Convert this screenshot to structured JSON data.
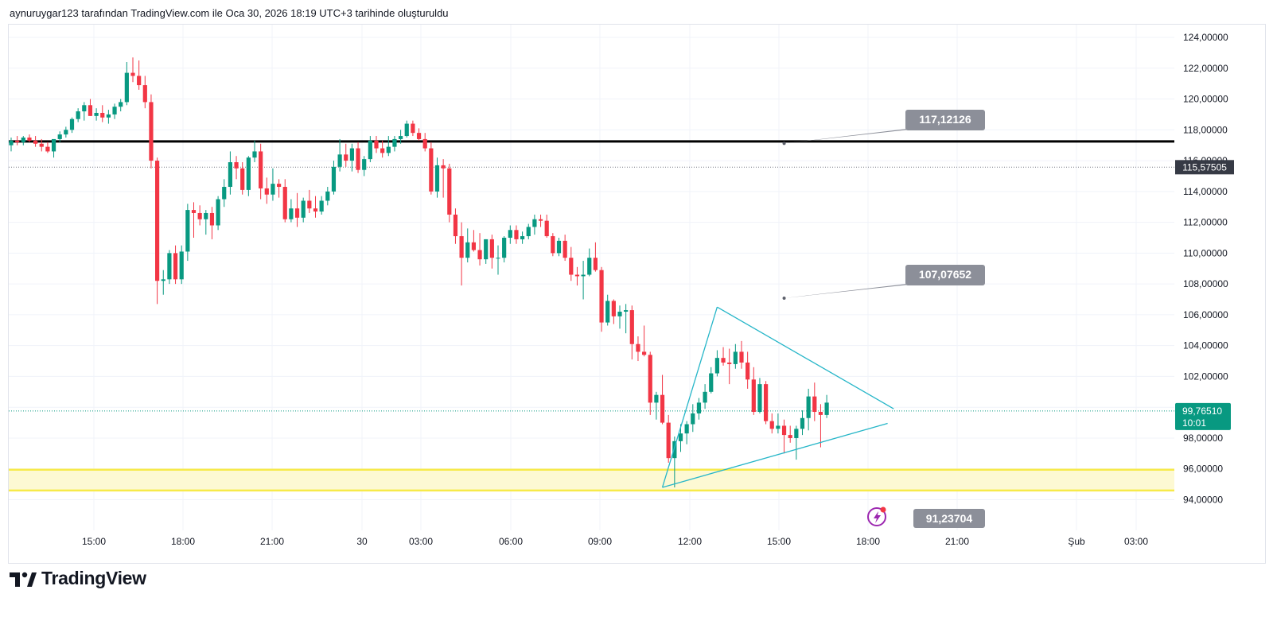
{
  "header": {
    "caption": "aynuruygar123 tarafından TradingView.com ile Oca 30, 2026 18:19 UTC+3 tarihinde oluşturuldu"
  },
  "brand": {
    "name": "TradingView"
  },
  "colors": {
    "up": "#089981",
    "down": "#f23645",
    "black_line": "#000000",
    "triangle": "#26b6c8",
    "zone": "#f7ea4a",
    "zone_fill": "#fdf9d3",
    "price_tag": "#089981",
    "callout": "#8c8f99"
  },
  "chart_data": {
    "type": "candlestick",
    "y_axis": {
      "min": 93,
      "max": 125,
      "ticks": [
        "124,00000",
        "122,00000",
        "120,00000",
        "118,00000",
        "116,00000",
        "114,00000",
        "112,00000",
        "110,00000",
        "108,00000",
        "106,00000",
        "104,00000",
        "102,00000",
        "100,00000",
        "98,00000",
        "96,00000",
        "94,00000"
      ]
    },
    "x_axis": {
      "ticks": [
        "15:00",
        "18:00",
        "21:00",
        "30",
        "03:00",
        "06:00",
        "09:00",
        "12:00",
        "15:00",
        "18:00",
        "21:00",
        "Şub",
        "03:00"
      ]
    },
    "candles": [
      [
        117.0,
        117.5,
        116.6,
        117.3
      ],
      [
        117.3,
        117.6,
        117.0,
        117.2
      ],
      [
        117.2,
        117.6,
        117.0,
        117.5
      ],
      [
        117.5,
        117.7,
        117.2,
        117.3
      ],
      [
        117.3,
        117.6,
        116.9,
        117.1
      ],
      [
        117.1,
        117.4,
        116.6,
        116.9
      ],
      [
        116.9,
        117.2,
        116.5,
        116.6
      ],
      [
        116.6,
        117.3,
        116.2,
        117.4
      ],
      [
        117.4,
        117.9,
        117.2,
        117.7
      ],
      [
        117.7,
        118.2,
        117.5,
        118.0
      ],
      [
        118.0,
        118.8,
        117.8,
        118.7
      ],
      [
        118.7,
        119.4,
        118.5,
        119.2
      ],
      [
        119.2,
        119.8,
        118.6,
        119.6
      ],
      [
        119.6,
        120.0,
        118.9,
        118.9
      ],
      [
        118.9,
        119.4,
        118.6,
        119.1
      ],
      [
        119.1,
        119.6,
        118.5,
        118.8
      ],
      [
        118.8,
        119.3,
        118.4,
        119.0
      ],
      [
        119.0,
        119.7,
        118.7,
        119.5
      ],
      [
        119.5,
        120.0,
        119.2,
        119.8
      ],
      [
        119.8,
        122.4,
        119.6,
        121.7
      ],
      [
        121.7,
        122.7,
        121.1,
        121.5
      ],
      [
        121.5,
        122.5,
        120.6,
        120.9
      ],
      [
        120.9,
        121.5,
        119.4,
        119.8
      ],
      [
        119.8,
        120.3,
        115.5,
        116.0
      ],
      [
        116.0,
        116.2,
        106.7,
        108.2
      ],
      [
        108.2,
        108.9,
        107.3,
        108.3
      ],
      [
        108.3,
        110.2,
        108.0,
        110.0
      ],
      [
        110.0,
        110.5,
        108.0,
        108.3
      ],
      [
        108.3,
        110.5,
        108.0,
        110.1
      ],
      [
        110.1,
        113.2,
        109.5,
        112.8
      ],
      [
        112.8,
        113.3,
        111.0,
        112.6
      ],
      [
        112.6,
        113.1,
        111.8,
        112.2
      ],
      [
        112.2,
        112.8,
        111.2,
        112.6
      ],
      [
        112.6,
        113.0,
        110.9,
        111.8
      ],
      [
        111.8,
        113.7,
        111.5,
        113.5
      ],
      [
        113.5,
        114.8,
        113.0,
        114.3
      ],
      [
        114.3,
        116.6,
        113.8,
        115.9
      ],
      [
        115.9,
        116.3,
        114.8,
        115.5
      ],
      [
        115.5,
        115.9,
        113.8,
        114.1
      ],
      [
        114.1,
        116.3,
        113.7,
        116.2
      ],
      [
        116.2,
        117.3,
        115.9,
        116.6
      ],
      [
        116.6,
        117.1,
        113.5,
        114.2
      ],
      [
        114.2,
        114.9,
        113.2,
        113.8
      ],
      [
        113.8,
        115.5,
        113.4,
        114.5
      ],
      [
        114.5,
        114.8,
        113.6,
        114.3
      ],
      [
        114.3,
        114.8,
        112.0,
        112.2
      ],
      [
        112.2,
        113.5,
        112.0,
        112.9
      ],
      [
        112.9,
        113.9,
        111.7,
        112.3
      ],
      [
        112.3,
        113.6,
        112.0,
        113.4
      ],
      [
        113.4,
        114.1,
        112.6,
        112.9
      ],
      [
        112.9,
        113.7,
        112.3,
        112.7
      ],
      [
        112.7,
        113.7,
        112.5,
        113.4
      ],
      [
        113.4,
        114.3,
        113.1,
        114.0
      ],
      [
        114.0,
        116.0,
        113.8,
        115.6
      ],
      [
        115.6,
        117.4,
        115.3,
        116.4
      ],
      [
        116.4,
        117.1,
        115.6,
        116.0
      ],
      [
        116.0,
        117.1,
        115.3,
        116.8
      ],
      [
        116.8,
        117.2,
        115.2,
        115.4
      ],
      [
        115.4,
        116.3,
        115.0,
        116.1
      ],
      [
        116.1,
        117.6,
        115.9,
        117.3
      ],
      [
        117.3,
        117.6,
        116.5,
        116.8
      ],
      [
        116.8,
        117.3,
        116.2,
        116.5
      ],
      [
        116.5,
        117.6,
        116.3,
        116.9
      ],
      [
        116.9,
        117.6,
        116.6,
        117.4
      ],
      [
        117.4,
        118.0,
        117.1,
        117.6
      ],
      [
        117.6,
        118.6,
        117.5,
        118.4
      ],
      [
        118.4,
        118.6,
        117.6,
        117.8
      ],
      [
        117.8,
        118.1,
        117.3,
        117.4
      ],
      [
        117.4,
        117.8,
        116.6,
        116.8
      ],
      [
        116.8,
        117.2,
        113.8,
        114.0
      ],
      [
        114.0,
        116.2,
        113.6,
        115.7
      ],
      [
        115.7,
        116.1,
        113.6,
        115.5
      ],
      [
        115.5,
        115.8,
        112.0,
        112.5
      ],
      [
        112.5,
        112.9,
        110.6,
        111.1
      ],
      [
        111.1,
        112.0,
        107.9,
        109.7
      ],
      [
        109.7,
        111.6,
        109.4,
        110.7
      ],
      [
        110.7,
        111.5,
        110.1,
        110.2
      ],
      [
        110.2,
        111.3,
        109.2,
        109.6
      ],
      [
        109.6,
        110.9,
        109.3,
        110.9
      ],
      [
        110.9,
        111.2,
        109.0,
        109.7
      ],
      [
        109.7,
        110.5,
        108.6,
        109.7
      ],
      [
        109.7,
        111.1,
        109.4,
        111.0
      ],
      [
        111.0,
        111.8,
        110.6,
        111.5
      ],
      [
        111.5,
        111.8,
        110.6,
        110.9
      ],
      [
        110.9,
        111.4,
        110.6,
        111.1
      ],
      [
        111.1,
        111.9,
        110.9,
        111.7
      ],
      [
        111.7,
        112.5,
        111.2,
        112.2
      ],
      [
        112.2,
        112.5,
        111.7,
        112.1
      ],
      [
        112.1,
        112.5,
        111.0,
        111.1
      ],
      [
        111.1,
        111.3,
        109.8,
        110.0
      ],
      [
        110.0,
        111.0,
        109.8,
        110.8
      ],
      [
        110.8,
        111.2,
        109.5,
        109.7
      ],
      [
        109.7,
        110.4,
        108.2,
        108.6
      ],
      [
        108.6,
        109.1,
        107.9,
        108.5
      ],
      [
        108.5,
        109.5,
        107.0,
        108.6
      ],
      [
        108.6,
        110.3,
        108.5,
        109.7
      ],
      [
        109.7,
        110.7,
        108.8,
        108.9
      ],
      [
        108.9,
        109.1,
        104.9,
        105.5
      ],
      [
        105.5,
        107.3,
        105.3,
        106.9
      ],
      [
        106.9,
        107.0,
        105.4,
        105.9
      ],
      [
        105.9,
        106.6,
        105.1,
        106.2
      ],
      [
        106.2,
        106.7,
        104.8,
        106.3
      ],
      [
        106.3,
        106.6,
        103.1,
        104.1
      ],
      [
        104.1,
        104.6,
        103.0,
        103.6
      ],
      [
        103.6,
        105.3,
        103.3,
        103.4
      ],
      [
        103.4,
        103.6,
        99.5,
        100.3
      ],
      [
        100.3,
        101.0,
        99.2,
        100.8
      ],
      [
        100.8,
        102.1,
        98.9,
        99.0
      ],
      [
        99.0,
        99.5,
        96.4,
        96.7
      ],
      [
        96.7,
        98.1,
        94.8,
        97.8
      ],
      [
        97.8,
        98.9,
        97.1,
        98.3
      ],
      [
        98.3,
        99.1,
        97.6,
        98.9
      ],
      [
        98.9,
        100.2,
        98.4,
        99.6
      ],
      [
        99.6,
        100.6,
        99.2,
        100.3
      ],
      [
        100.3,
        101.5,
        99.9,
        101.0
      ],
      [
        101.0,
        102.6,
        100.9,
        102.2
      ],
      [
        102.2,
        103.7,
        102.0,
        103.2
      ],
      [
        103.2,
        103.9,
        102.7,
        102.9
      ],
      [
        102.9,
        103.8,
        101.5,
        102.8
      ],
      [
        102.8,
        104.1,
        102.5,
        103.6
      ],
      [
        103.6,
        104.3,
        102.5,
        102.9
      ],
      [
        102.9,
        103.6,
        101.2,
        101.8
      ],
      [
        101.8,
        102.6,
        99.5,
        99.7
      ],
      [
        99.7,
        101.9,
        99.6,
        101.5
      ],
      [
        101.5,
        101.7,
        98.9,
        99.1
      ],
      [
        99.1,
        99.6,
        98.3,
        98.6
      ],
      [
        98.6,
        99.6,
        98.3,
        98.8
      ],
      [
        98.8,
        99.2,
        97.0,
        98.2
      ],
      [
        98.2,
        98.8,
        97.7,
        98.0
      ],
      [
        98.0,
        98.8,
        96.6,
        98.6
      ],
      [
        98.6,
        99.8,
        98.2,
        99.3
      ],
      [
        99.3,
        101.2,
        98.5,
        100.7
      ],
      [
        100.7,
        101.6,
        99.1,
        99.7
      ],
      [
        99.7,
        100.2,
        97.4,
        99.5
      ],
      [
        99.5,
        100.8,
        99.3,
        100.3
      ]
    ],
    "lines": {
      "resistance": 117.25,
      "dotted_price": 115.575,
      "last_price": 99.76
    },
    "yellow_zone": [
      94.6,
      95.95
    ],
    "triangle": {
      "upper": [
        [
          116,
          106.5
        ],
        [
          145,
          99.9
        ]
      ],
      "lower": [
        [
          107,
          94.8
        ],
        [
          144,
          98.95
        ]
      ]
    },
    "price_tags": {
      "dotted": "115,57505",
      "last": "99,76510",
      "countdown": "10:01"
    },
    "callouts": [
      {
        "label": "117,12126",
        "anchor": [
          127,
          117.12
        ]
      },
      {
        "label": "107,07652",
        "anchor": [
          127,
          107.08
        ]
      },
      {
        "label": "91,23704",
        "anchor": [
          138,
          93.4
        ]
      }
    ]
  }
}
